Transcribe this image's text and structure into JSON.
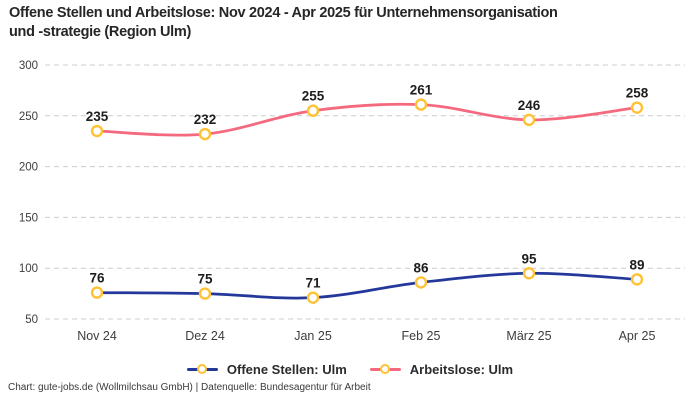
{
  "title_lines": [
    "Offene Stellen und Arbeitslose: Nov 2024 - Apr 2025 für Unternehmensorganisation",
    "und -strategie (Region Ulm)"
  ],
  "footer": "Chart: gute-jobs.de (Wollmilchsau GmbH) | Datenquelle: Bundesagentur für Arbeit",
  "colors": {
    "grid": "#cccccc",
    "axis_text": "#3d3d3d",
    "value_label_text": "#1e1e1e",
    "title_text": "#262626",
    "marker_ring": "#ffc234",
    "marker_fill": "#ffffff"
  },
  "chart_data": {
    "type": "line",
    "title": "Offene Stellen und Arbeitslose: Nov 2024 - Apr 2025 für Unternehmensorganisation und -strategie (Region Ulm)",
    "categories": [
      "Nov 24",
      "Dez 24",
      "Jan 25",
      "Feb 25",
      "März 25",
      "Apr 25"
    ],
    "series": [
      {
        "name": "Offene Stellen: Ulm",
        "color": "#24389c",
        "values": [
          76,
          75,
          71,
          86,
          95,
          89
        ]
      },
      {
        "name": "Arbeitslose: Ulm",
        "color": "#f5697f",
        "values": [
          235,
          232,
          255,
          261,
          246,
          258
        ]
      }
    ],
    "ylim": [
      50,
      300
    ],
    "yticks": [
      300,
      250,
      200,
      150,
      100,
      50
    ],
    "grid": "dashed",
    "legend_position": "bottom",
    "data_labels": true,
    "marker": {
      "fill": "#ffffff",
      "ring": "#ffc234"
    }
  }
}
